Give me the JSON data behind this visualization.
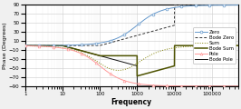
{
  "title": "",
  "xlabel": "Frequency",
  "ylabel": "Phase (Degrees)",
  "xlim_log": [
    0,
    5.699
  ],
  "ylim": [
    -90,
    90
  ],
  "yticks": [
    -90,
    -70,
    -50,
    -30,
    -10,
    10,
    30,
    50,
    70,
    90
  ],
  "xticks": [
    1,
    10,
    100,
    1000,
    10000,
    100000
  ],
  "xtick_labels": [
    "1",
    "10",
    "100",
    "1000",
    "10000",
    "100000"
  ],
  "pole_freq": 100,
  "zero_freq": 1000,
  "bg_color": "#f0f0f0",
  "plot_bg": "#ffffff",
  "colors": {
    "zero": "#6699CC",
    "bode_zero": "#333333",
    "sum": "#808000",
    "bode_sum": "#4d5200",
    "pole": "#FF9999",
    "bode_pole": "#111111"
  },
  "legend_labels": [
    "Zero",
    "Bode Zero",
    "Sum",
    "Bode Sum",
    "Pole",
    "Bode Pole"
  ]
}
